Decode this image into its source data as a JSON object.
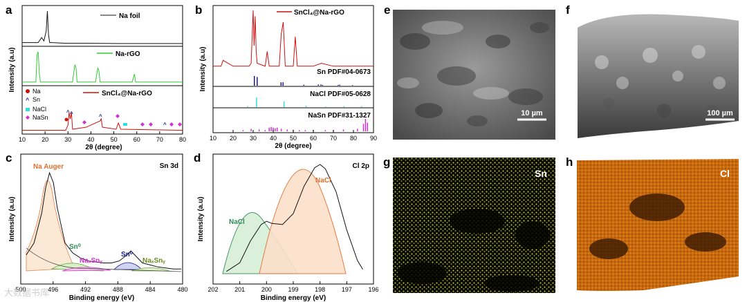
{
  "panels": {
    "a": {
      "label": "a",
      "xlabel": "2θ (degree)",
      "ylabel": "Intensity (a.u)",
      "xticks": [
        "10",
        "20",
        "30",
        "40",
        "50",
        "60",
        "70",
        "80"
      ],
      "legend": [
        "Na foil",
        "Na-rGO",
        "SnCl₄@Na-rGO"
      ],
      "markers": [
        "Na",
        "Sn",
        "NaCl",
        "NaSn"
      ]
    },
    "b": {
      "label": "b",
      "xlabel": "2θ (degree)",
      "ylabel": "Intensity (a.u)",
      "xticks": [
        "10",
        "20",
        "30",
        "40",
        "50",
        "60",
        "70",
        "80",
        "90"
      ],
      "legend": [
        "SnCl₄@Na-rGO"
      ],
      "refs": [
        "Sn PDF#04-0673",
        "NaCl PDF#05-0628",
        "NaSn PDF#31-1327"
      ]
    },
    "c": {
      "label": "c",
      "xlabel": "Binding energy (eV)",
      "ylabel": "Intensity (a.u)",
      "xticks": [
        "500",
        "496",
        "492",
        "488",
        "484",
        "480"
      ],
      "corner": "Sn 3d",
      "peaks": [
        "Na Auger",
        "Sn⁰",
        "NaₓSnᵧ",
        "Sn⁰",
        "NaₓSnᵧ"
      ]
    },
    "d": {
      "label": "d",
      "xlabel": "Binding energy (eV)",
      "ylabel": "Intensity (a.u)",
      "xticks": [
        "202",
        "201",
        "200",
        "199",
        "198",
        "197",
        "196"
      ],
      "corner": "Cl 2p",
      "peaks": [
        "NaCl",
        "NaCl"
      ]
    },
    "e": {
      "label": "e",
      "scalebar": "10 µm"
    },
    "f": {
      "label": "f",
      "scalebar": "100 µm"
    },
    "g": {
      "label": "g",
      "element": "Sn"
    },
    "h": {
      "label": "h",
      "element": "Cl"
    }
  },
  "watermark": "大数据书库",
  "colors": {
    "black": "#111111",
    "green": "#33cc33",
    "red": "#cc1111",
    "navy": "#1a1a8c",
    "cyan": "#33dddd",
    "magenta": "#cc33cc",
    "auger": "#e07030",
    "nacl_green": "#2e8b57"
  },
  "chart_data": [
    {
      "type": "line",
      "panel": "a",
      "xlabel": "2θ (degree)",
      "ylabel": "Intensity (a.u)",
      "xlim": [
        10,
        80
      ],
      "series": [
        {
          "name": "Na foil",
          "x": [
            10,
            17,
            18.5,
            19.5,
            20.5,
            21,
            21.5,
            22,
            23,
            29,
            36,
            52,
            80
          ],
          "y": [
            0.05,
            0.05,
            0.2,
            0.1,
            0.4,
            1.0,
            0.3,
            0.05,
            0.05,
            0.03,
            0.03,
            0.02,
            0.02
          ]
        },
        {
          "name": "Na-rGO",
          "x": [
            10,
            16,
            16.5,
            17,
            17.5,
            18,
            32,
            33,
            33.5,
            34,
            42,
            43,
            43.5,
            44,
            58,
            59,
            59.5,
            60,
            80
          ],
          "y": [
            0.05,
            0.05,
            0.9,
            1.0,
            0.3,
            0.05,
            0.05,
            0.6,
            0.5,
            0.05,
            0.05,
            0.5,
            0.4,
            0.05,
            0.05,
            0.3,
            0.05,
            0.05,
            0.05
          ]
        },
        {
          "name": "SnCl₄@Na-rGO",
          "x": [
            10,
            29,
            30,
            30.5,
            31,
            31.5,
            32,
            38,
            44,
            44.5,
            45,
            51,
            52,
            53,
            80
          ],
          "y": [
            0.05,
            0.05,
            0.3,
            0.9,
            0.6,
            0.9,
            0.1,
            0.2,
            0.5,
            0.6,
            0.2,
            0.1,
            0.4,
            0.1,
            0.05
          ]
        }
      ]
    },
    {
      "type": "line",
      "panel": "b",
      "xlabel": "2θ (degree)",
      "ylabel": "Intensity (a.u)",
      "xlim": [
        10,
        90
      ],
      "series": [
        {
          "name": "SnCl₄@Na-rGO",
          "x": [
            10,
            14,
            15,
            20,
            28,
            29,
            30,
            30.5,
            31,
            31.5,
            32,
            36,
            37,
            38,
            43,
            44,
            45,
            46,
            50,
            51,
            52,
            60,
            64,
            70,
            80,
            90
          ],
          "y": [
            0.05,
            0.05,
            0.15,
            0.05,
            0.05,
            0.1,
            1.0,
            0.4,
            0.9,
            0.3,
            0.1,
            0.05,
            0.3,
            0.05,
            0.05,
            0.6,
            0.8,
            0.05,
            0.05,
            0.55,
            0.05,
            0.05,
            0.1,
            0.05,
            0.05,
            0.05
          ]
        },
        {
          "name": "Sn PDF#04-0673",
          "x": [
            30.6,
            32.0,
            43.9,
            44.9,
            55.3,
            62.5,
            63.8,
            64.6,
            72.4,
            73.2,
            79.5
          ],
          "y": [
            1.0,
            0.9,
            0.35,
            0.35,
            0.1,
            0.12,
            0.12,
            0.08,
            0.08,
            0.1,
            0.06
          ]
        },
        {
          "name": "NaCl PDF#05-0628",
          "x": [
            27.3,
            31.7,
            45.4,
            56.4,
            66.2,
            75.3,
            84.0
          ],
          "y": [
            0.1,
            1.0,
            0.6,
            0.15,
            0.05,
            0.1,
            0.1
          ]
        },
        {
          "name": "NaSn PDF#31-1327",
          "x": [
            25,
            29,
            33,
            36,
            38,
            39,
            40,
            41,
            42,
            44,
            47,
            50,
            53,
            56,
            60,
            66,
            70,
            75,
            82,
            85,
            86,
            87
          ],
          "y": [
            0.1,
            0.2,
            0.15,
            0.1,
            0.3,
            0.35,
            0.3,
            0.25,
            0.3,
            0.2,
            0.15,
            0.12,
            0.1,
            0.1,
            0.12,
            0.1,
            0.1,
            0.15,
            0.2,
            0.6,
            1.0,
            0.7
          ]
        }
      ]
    },
    {
      "type": "line",
      "panel": "c",
      "xlabel": "Binding energy (eV)",
      "ylabel": "Intensity (a.u)",
      "xlim": [
        500,
        480
      ],
      "series": [
        {
          "name": "",
          "x": [
            500,
            499,
            498,
            497.5,
            497,
            496.5,
            496,
            495,
            494,
            493,
            492,
            491,
            490,
            489,
            488,
            487,
            486.5,
            486,
            485,
            484,
            483,
            482,
            481,
            480
          ],
          "y": [
            0.18,
            0.3,
            0.6,
            0.85,
            1.0,
            0.9,
            0.65,
            0.3,
            0.2,
            0.15,
            0.12,
            0.11,
            0.1,
            0.1,
            0.12,
            0.18,
            0.22,
            0.18,
            0.1,
            0.08,
            0.06,
            0.05,
            0.04,
            0.04
          ]
        }
      ]
    },
    {
      "type": "line",
      "panel": "d",
      "xlabel": "Binding energy (eV)",
      "ylabel": "Intensity (a.u)",
      "xlim": [
        202,
        196
      ],
      "series": [
        {
          "name": "",
          "x": [
            201.5,
            201,
            200.6,
            200.2,
            200,
            199.8,
            199.4,
            199,
            198.6,
            198.2,
            198,
            197.8,
            197.4,
            197,
            196.6,
            196.4
          ],
          "y": [
            0.02,
            0.1,
            0.3,
            0.45,
            0.48,
            0.46,
            0.45,
            0.55,
            0.8,
            0.97,
            1.0,
            0.96,
            0.75,
            0.4,
            0.12,
            0.04
          ]
        }
      ]
    }
  ]
}
